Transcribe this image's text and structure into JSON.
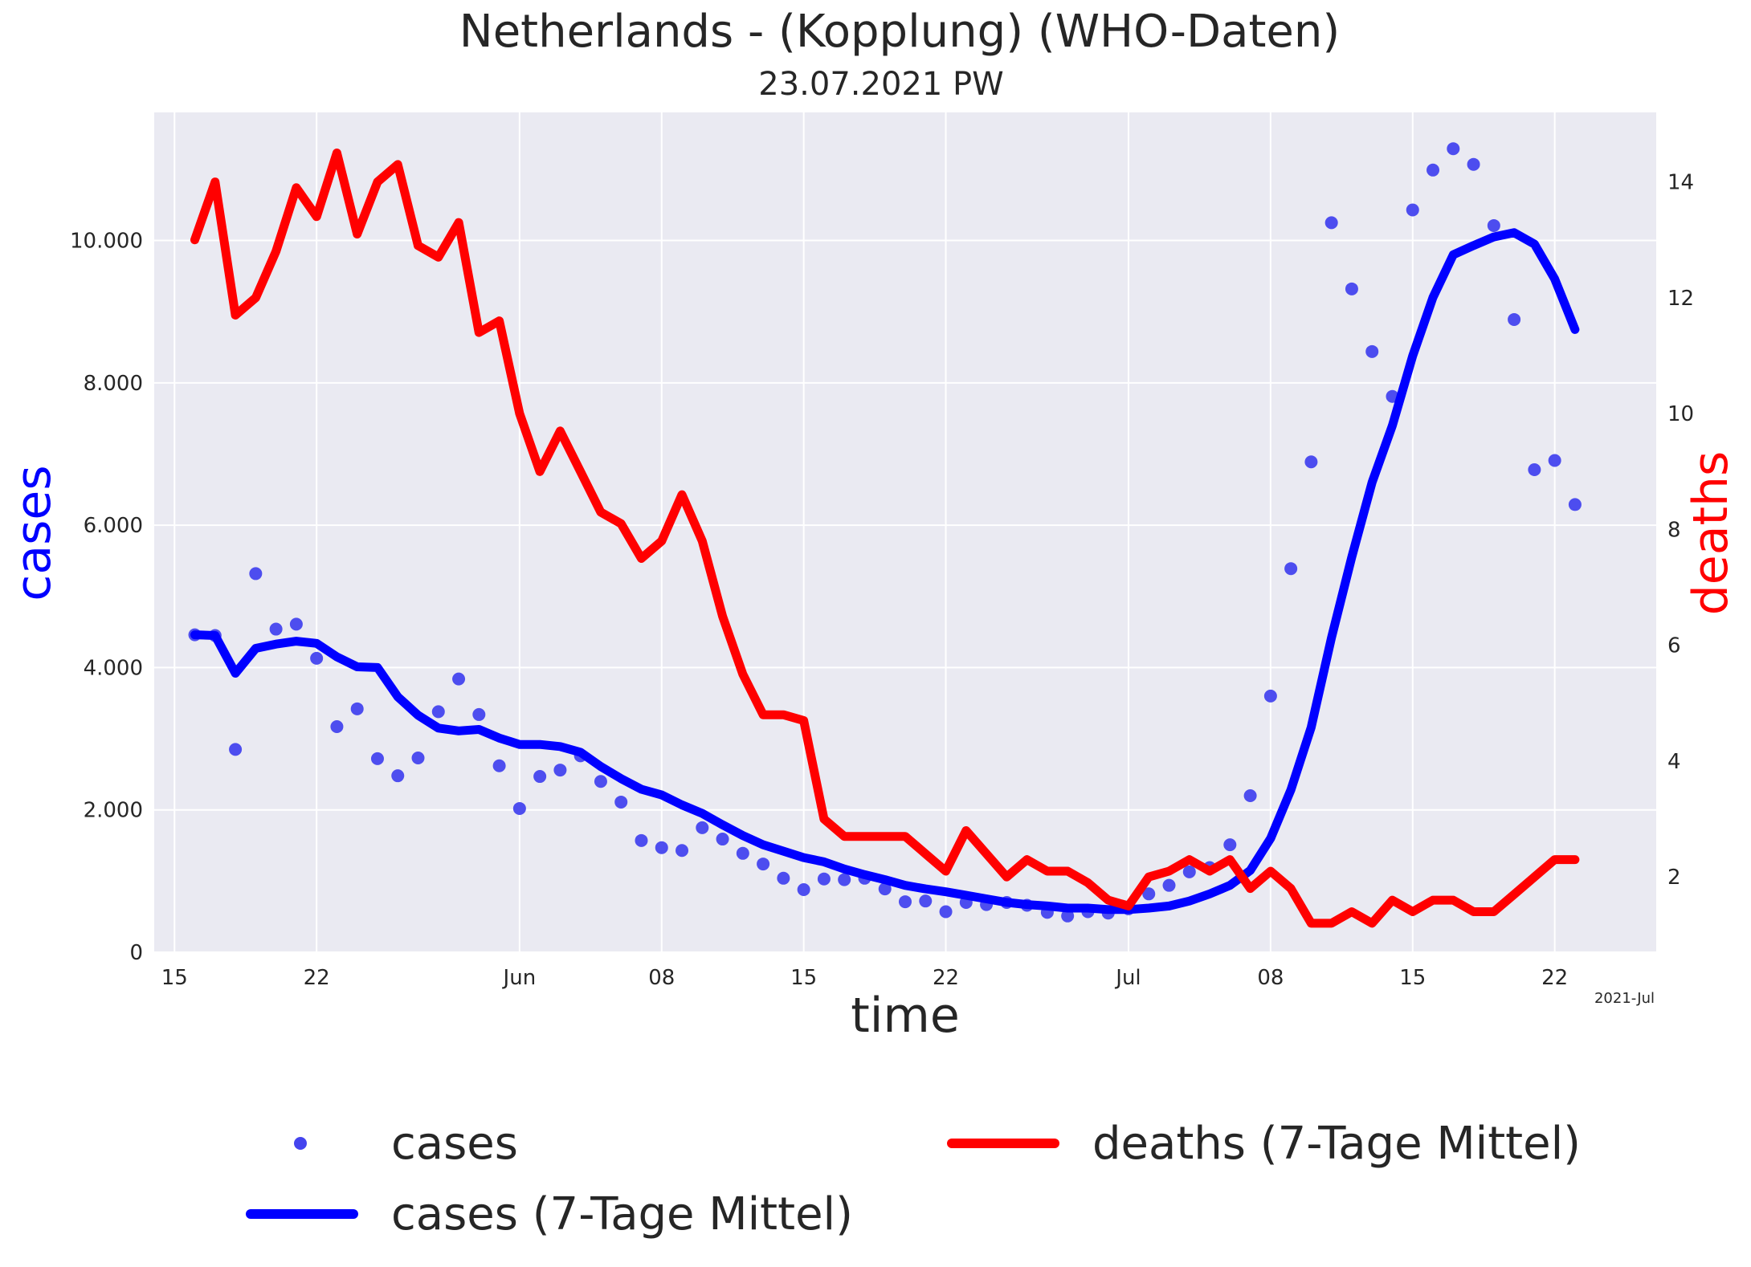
{
  "chart_data": {
    "type": "line",
    "title": "Netherlands - (Kopplung)  (WHO-Daten)",
    "subtitle": "23.07.2021 PW",
    "xlabel": "time",
    "ylabel_left": "cases",
    "ylabel_right": "deaths",
    "x_start": "2021-05-16",
    "x_end": "2021-07-23",
    "xlim": [
      "2021-05-14",
      "2021-07-27"
    ],
    "ylim_left": [
      0,
      11800
    ],
    "ylim_right": [
      0.7,
      15.2
    ],
    "x_ticks": [
      {
        "date": "2021-05-15",
        "label": "15"
      },
      {
        "date": "2021-05-22",
        "label": "22"
      },
      {
        "date": "2021-06-01",
        "label": "Jun"
      },
      {
        "date": "2021-06-08",
        "label": "08"
      },
      {
        "date": "2021-06-15",
        "label": "15"
      },
      {
        "date": "2021-06-22",
        "label": "22"
      },
      {
        "date": "2021-07-01",
        "label": "Jul"
      },
      {
        "date": "2021-07-08",
        "label": "08"
      },
      {
        "date": "2021-07-15",
        "label": "15"
      },
      {
        "date": "2021-07-22",
        "label": "22"
      }
    ],
    "x_offset_label": "2021-Jul",
    "y_ticks_left": [
      {
        "value": 0,
        "label": "0"
      },
      {
        "value": 2000,
        "label": "2.000"
      },
      {
        "value": 4000,
        "label": "4.000"
      },
      {
        "value": 6000,
        "label": "6.000"
      },
      {
        "value": 8000,
        "label": "8.000"
      },
      {
        "value": 10000,
        "label": "10.000"
      }
    ],
    "y_ticks_right": [
      {
        "value": 2,
        "label": "2"
      },
      {
        "value": 4,
        "label": "4"
      },
      {
        "value": 6,
        "label": "6"
      },
      {
        "value": 8,
        "label": "8"
      },
      {
        "value": 10,
        "label": "10"
      },
      {
        "value": 12,
        "label": "12"
      },
      {
        "value": 14,
        "label": "14"
      }
    ],
    "grid": true,
    "legend_position": "bottom",
    "colors": {
      "cases": "#4444ee",
      "cases_avg": "#0000ff",
      "deaths_avg": "#ff0000",
      "background": "#eaeaf2",
      "grid": "#ffffff",
      "text": "#262626"
    },
    "series": [
      {
        "name": "cases",
        "axis": "left",
        "style": "scatter",
        "values": [
          4460,
          4450,
          2850,
          5320,
          4540,
          4610,
          4130,
          3170,
          3420,
          2720,
          2480,
          2730,
          3380,
          3840,
          3340,
          2620,
          2020,
          2470,
          2560,
          2760,
          2400,
          2110,
          1570,
          1470,
          1430,
          1750,
          1590,
          1390,
          1240,
          1040,
          880,
          1030,
          1020,
          1040,
          890,
          710,
          720,
          570,
          700,
          670,
          700,
          660,
          560,
          510,
          570,
          550,
          610,
          820,
          940,
          1130,
          1190,
          1510,
          2200,
          3600,
          5390,
          6890,
          10250,
          9320,
          8440,
          7810,
          10430,
          10990,
          11290,
          11070,
          10210,
          8890,
          6780,
          6910,
          6290
        ]
      },
      {
        "name": "cases (7-Tage Mittel)",
        "axis": "left",
        "style": "line",
        "values": [
          4460,
          4450,
          3920,
          4270,
          4330,
          4370,
          4340,
          4150,
          4010,
          4000,
          3590,
          3330,
          3150,
          3110,
          3130,
          3010,
          2920,
          2920,
          2890,
          2810,
          2610,
          2440,
          2290,
          2210,
          2070,
          1950,
          1790,
          1640,
          1510,
          1420,
          1330,
          1270,
          1170,
          1090,
          1020,
          940,
          890,
          850,
          800,
          750,
          700,
          670,
          650,
          620,
          620,
          600,
          600,
          620,
          650,
          720,
          820,
          940,
          1150,
          1600,
          2280,
          3160,
          4420,
          5550,
          6600,
          7400,
          8380,
          9200,
          9800,
          9930,
          10050,
          10110,
          9950,
          9460,
          8750
        ]
      },
      {
        "name": "deaths (7-Tage Mittel)",
        "axis": "right",
        "style": "line",
        "values": [
          13.0,
          14.0,
          11.7,
          12.0,
          12.8,
          13.9,
          13.4,
          14.5,
          13.1,
          14.0,
          14.3,
          12.9,
          12.7,
          13.3,
          11.4,
          11.6,
          10.0,
          9.0,
          9.7,
          9.0,
          8.3,
          8.1,
          7.5,
          7.8,
          8.6,
          7.8,
          6.5,
          5.5,
          4.8,
          4.8,
          4.7,
          3.0,
          2.7,
          2.7,
          2.7,
          2.7,
          2.4,
          2.1,
          2.8,
          2.4,
          2.0,
          2.3,
          2.1,
          2.1,
          1.9,
          1.6,
          1.5,
          2.0,
          2.1,
          2.3,
          2.1,
          2.3,
          1.8,
          2.1,
          1.8,
          1.2,
          1.2,
          1.4,
          1.2,
          1.6,
          1.4,
          1.6,
          1.6,
          1.4,
          1.4,
          1.7,
          2.0,
          2.3,
          2.3
        ]
      }
    ]
  },
  "legend": [
    {
      "key": "cases",
      "label": "cases"
    },
    {
      "key": "cases_avg",
      "label": "cases (7-Tage Mittel)"
    },
    {
      "key": "deaths_avg",
      "label": "deaths (7-Tage Mittel)"
    }
  ]
}
